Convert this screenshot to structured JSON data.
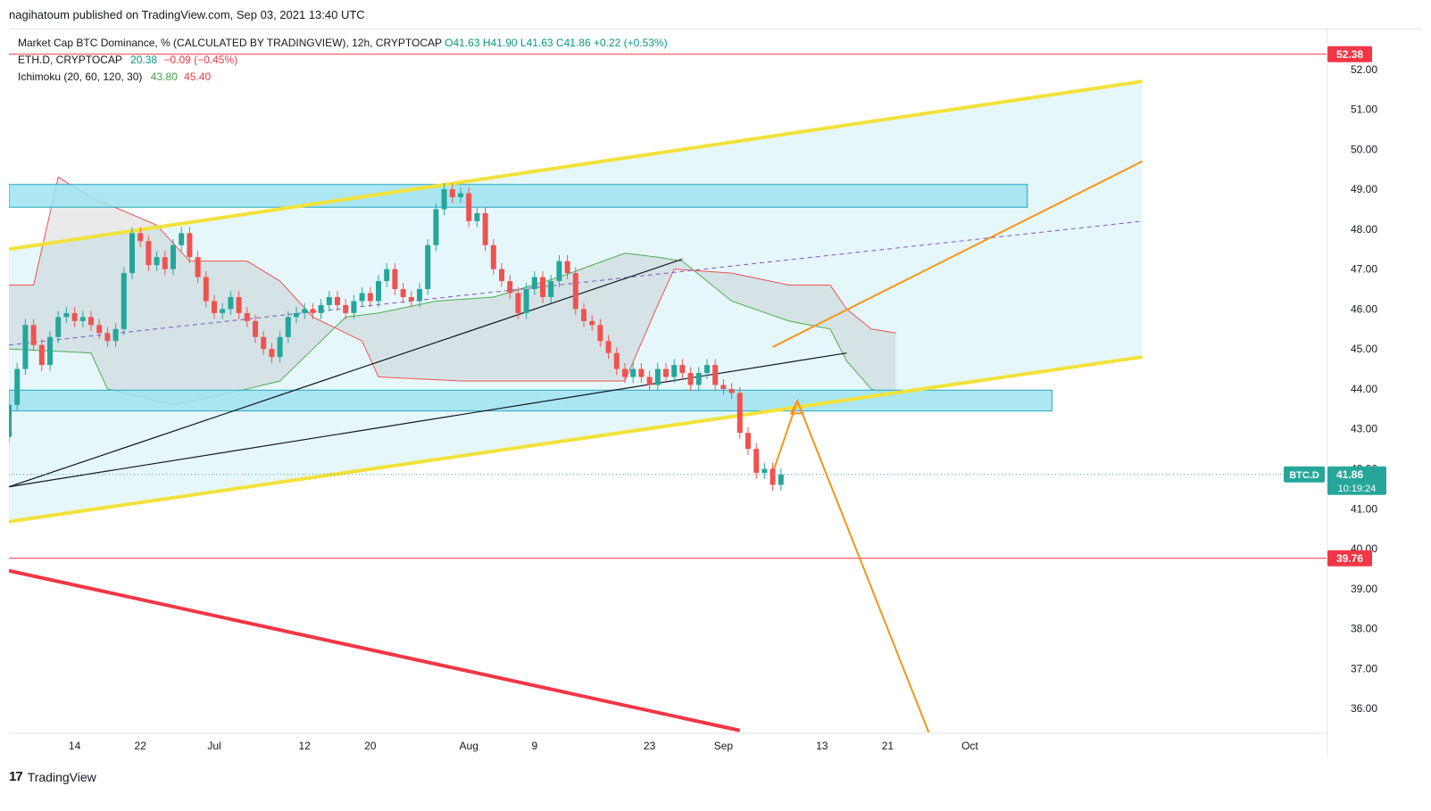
{
  "header": {
    "published": "nagihatoum published on TradingView.com, Sep 03, 2021 13:40 UTC"
  },
  "legend": {
    "symbol": "Market Cap BTC Dominance, % (CALCULATED BY TRADINGVIEW), 12h, CRYPTOCAP",
    "ohlc": "O41.63  H41.90  L41.63  C41.86  +0.22 (+0.53%)",
    "eth_label": "ETH.D, CRYPTOCAP",
    "eth_value": "20.38",
    "eth_change": "−0.09 (−0.45%)",
    "ichimoku_label": "Ichimoku (20, 60, 120, 30)",
    "ichimoku_a": "43.80",
    "ichimoku_b": "45.40"
  },
  "footer": {
    "brand": "TradingView"
  },
  "colors": {
    "up": "#26a69a",
    "down": "#ef5350",
    "channel": "#f2e23a",
    "zone": "#9fe3ef",
    "orange": "#f7931a",
    "cloud_green": "#4caf50",
    "cloud_red": "#ef5350"
  },
  "chart_data": {
    "type": "candlestick",
    "series_name": "BTC.D",
    "interval": "12h",
    "x_tick_labels": [
      "14",
      "22",
      "Jul",
      "12",
      "20",
      "Aug",
      "9",
      "23",
      "Sep",
      "13",
      "21",
      "Oct"
    ],
    "y_tick_labels": [
      "36.00",
      "37.00",
      "38.00",
      "39.00",
      "40.00",
      "41.00",
      "42.00",
      "43.00",
      "44.00",
      "45.00",
      "46.00",
      "47.00",
      "48.00",
      "49.00",
      "50.00",
      "51.00",
      "52.00"
    ],
    "ylim": [
      35.4,
      53.0
    ],
    "price_labels": [
      {
        "label": "52.38",
        "value": 52.38,
        "color": "#f23645"
      },
      {
        "label": "39.76",
        "value": 39.76,
        "color": "#f23645"
      }
    ],
    "last_price": {
      "symbol": "BTC.D",
      "value": 41.86,
      "label": "41.86",
      "countdown": "10:19:24"
    },
    "horizontal_lines": [
      52.38,
      39.76
    ],
    "zones": [
      {
        "from_date": "2021-06-06",
        "to_date": "2021-10-08",
        "low": 48.55,
        "high": 49.12
      },
      {
        "from_date": "2021-06-06",
        "to_date": "2021-10-11",
        "low": 43.45,
        "high": 43.97
      }
    ],
    "candles_daily_close": [
      [
        "2021-06-06",
        43.6
      ],
      [
        "2021-06-07",
        44.5
      ],
      [
        "2021-06-08",
        45.6
      ],
      [
        "2021-06-09",
        45.1
      ],
      [
        "2021-06-10",
        44.6
      ],
      [
        "2021-06-11",
        45.3
      ],
      [
        "2021-06-12",
        45.8
      ],
      [
        "2021-06-13",
        45.9
      ],
      [
        "2021-06-14",
        45.7
      ],
      [
        "2021-06-15",
        45.8
      ],
      [
        "2021-06-16",
        45.6
      ],
      [
        "2021-06-17",
        45.4
      ],
      [
        "2021-06-18",
        45.2
      ],
      [
        "2021-06-19",
        45.5
      ],
      [
        "2021-06-20",
        46.9
      ],
      [
        "2021-06-21",
        47.9
      ],
      [
        "2021-06-22",
        47.7
      ],
      [
        "2021-06-23",
        47.1
      ],
      [
        "2021-06-24",
        47.3
      ],
      [
        "2021-06-25",
        47.0
      ],
      [
        "2021-06-26",
        47.6
      ],
      [
        "2021-06-27",
        47.9
      ],
      [
        "2021-06-28",
        47.3
      ],
      [
        "2021-06-29",
        46.8
      ],
      [
        "2021-06-30",
        46.2
      ],
      [
        "2021-07-01",
        45.9
      ],
      [
        "2021-07-02",
        46.0
      ],
      [
        "2021-07-03",
        46.3
      ],
      [
        "2021-07-04",
        45.9
      ],
      [
        "2021-07-05",
        45.7
      ],
      [
        "2021-07-06",
        45.3
      ],
      [
        "2021-07-07",
        45.0
      ],
      [
        "2021-07-08",
        44.8
      ],
      [
        "2021-07-09",
        45.3
      ],
      [
        "2021-07-10",
        45.8
      ],
      [
        "2021-07-11",
        45.9
      ],
      [
        "2021-07-12",
        46.0
      ],
      [
        "2021-07-13",
        45.9
      ],
      [
        "2021-07-14",
        46.1
      ],
      [
        "2021-07-15",
        46.3
      ],
      [
        "2021-07-16",
        46.1
      ],
      [
        "2021-07-17",
        45.9
      ],
      [
        "2021-07-18",
        46.2
      ],
      [
        "2021-07-19",
        46.4
      ],
      [
        "2021-07-20",
        46.2
      ],
      [
        "2021-07-21",
        46.7
      ],
      [
        "2021-07-22",
        47.0
      ],
      [
        "2021-07-23",
        46.5
      ],
      [
        "2021-07-24",
        46.3
      ],
      [
        "2021-07-25",
        46.2
      ],
      [
        "2021-07-26",
        46.5
      ],
      [
        "2021-07-27",
        47.6
      ],
      [
        "2021-07-28",
        48.5
      ],
      [
        "2021-07-29",
        49.0
      ],
      [
        "2021-07-30",
        48.8
      ],
      [
        "2021-07-31",
        48.9
      ],
      [
        "2021-08-01",
        48.2
      ],
      [
        "2021-08-02",
        48.4
      ],
      [
        "2021-08-03",
        47.6
      ],
      [
        "2021-08-04",
        47.0
      ],
      [
        "2021-08-05",
        46.7
      ],
      [
        "2021-08-06",
        46.4
      ],
      [
        "2021-08-07",
        45.9
      ],
      [
        "2021-08-08",
        46.5
      ],
      [
        "2021-08-09",
        46.8
      ],
      [
        "2021-08-10",
        46.3
      ],
      [
        "2021-08-11",
        46.7
      ],
      [
        "2021-08-12",
        47.2
      ],
      [
        "2021-08-13",
        46.9
      ],
      [
        "2021-08-14",
        46.0
      ],
      [
        "2021-08-15",
        45.7
      ],
      [
        "2021-08-16",
        45.6
      ],
      [
        "2021-08-17",
        45.2
      ],
      [
        "2021-08-18",
        44.9
      ],
      [
        "2021-08-19",
        44.5
      ],
      [
        "2021-08-20",
        44.3
      ],
      [
        "2021-08-21",
        44.5
      ],
      [
        "2021-08-22",
        44.3
      ],
      [
        "2021-08-23",
        44.1
      ],
      [
        "2021-08-24",
        44.5
      ],
      [
        "2021-08-25",
        44.3
      ],
      [
        "2021-08-26",
        44.6
      ],
      [
        "2021-08-27",
        44.4
      ],
      [
        "2021-08-28",
        44.1
      ],
      [
        "2021-08-29",
        44.4
      ],
      [
        "2021-08-30",
        44.6
      ],
      [
        "2021-08-31",
        44.1
      ],
      [
        "2021-09-01",
        44.0
      ],
      [
        "2021-09-02",
        43.9
      ],
      [
        "2021-09-03",
        42.9
      ],
      [
        "2021-09-04",
        42.5
      ],
      [
        "2021-09-05",
        41.9
      ],
      [
        "2021-09-06",
        42.0
      ],
      [
        "2021-09-07",
        41.6
      ],
      [
        "2021-09-08",
        41.86
      ]
    ]
  }
}
